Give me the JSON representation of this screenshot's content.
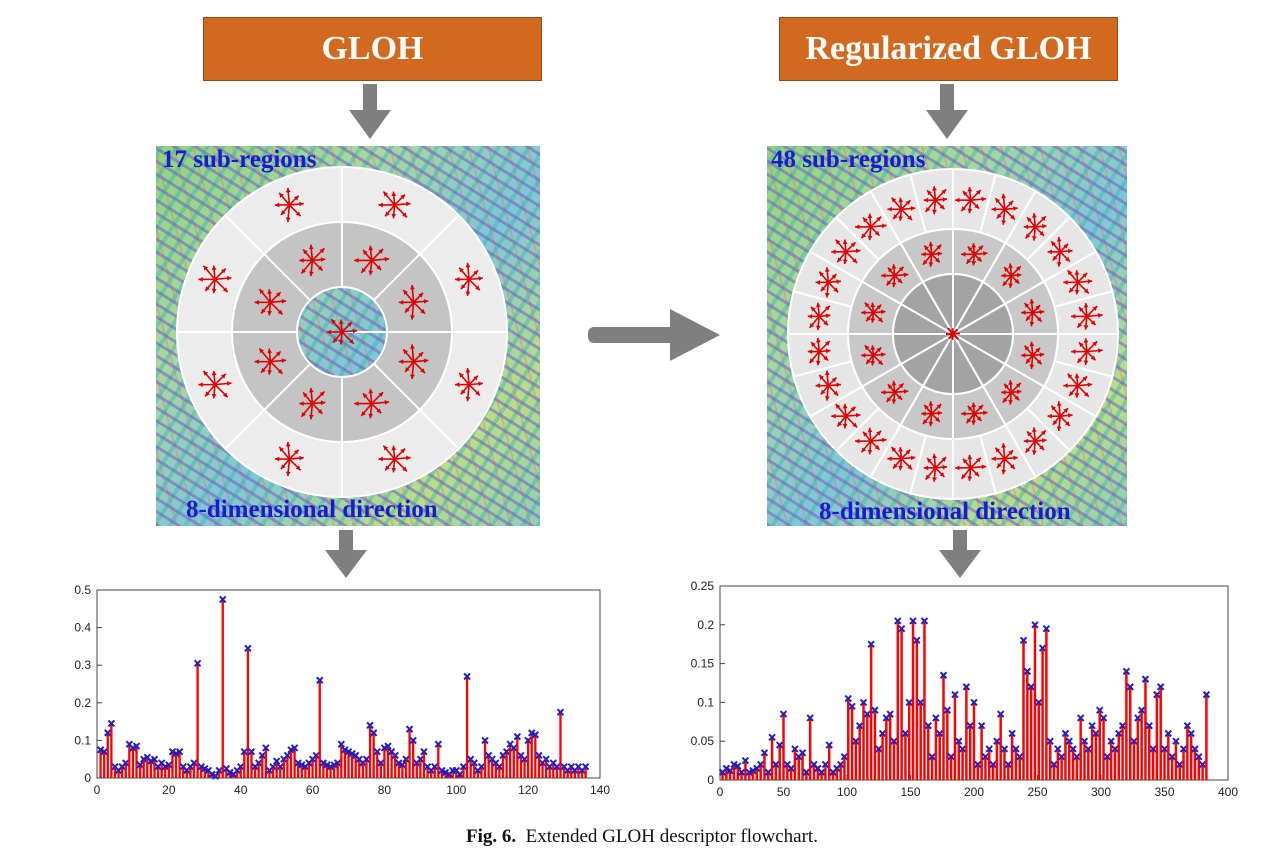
{
  "header_left": "GLOH",
  "header_right": "Regularized GLOH",
  "left_panel": {
    "subregions_label": "17 sub-regions",
    "direction_label": "8-dimensional direction"
  },
  "right_panel": {
    "subregions_label": "48 sub-regions",
    "direction_label": "8-dimensional direction"
  },
  "caption": {
    "fig": "Fig. 6.",
    "text": "Extended GLOH descriptor flowchart."
  },
  "colors": {
    "header": "#d2691e",
    "arrow": "#7f7f7f",
    "bar": "#ff0000",
    "marker": "#2020c0",
    "label": "#1a1ad0"
  },
  "chart_data": [
    {
      "type": "bar",
      "xlim": [
        0,
        140
      ],
      "ylim": [
        0,
        0.5
      ],
      "xticks": [
        0,
        20,
        40,
        60,
        80,
        100,
        120,
        140
      ],
      "yticks": [
        0,
        0.1,
        0.2,
        0.3,
        0.4,
        0.5
      ],
      "x": [
        1,
        2,
        3,
        4,
        5,
        6,
        7,
        8,
        9,
        10,
        11,
        12,
        13,
        14,
        15,
        16,
        17,
        18,
        19,
        20,
        21,
        22,
        23,
        24,
        25,
        26,
        27,
        28,
        29,
        30,
        31,
        32,
        33,
        34,
        35,
        36,
        37,
        38,
        39,
        40,
        41,
        42,
        43,
        44,
        45,
        46,
        47,
        48,
        49,
        50,
        51,
        52,
        53,
        54,
        55,
        56,
        57,
        58,
        59,
        60,
        61,
        62,
        63,
        64,
        65,
        66,
        67,
        68,
        69,
        70,
        71,
        72,
        73,
        74,
        75,
        76,
        77,
        78,
        79,
        80,
        81,
        82,
        83,
        84,
        85,
        86,
        87,
        88,
        89,
        90,
        91,
        92,
        93,
        94,
        95,
        96,
        97,
        98,
        99,
        100,
        101,
        102,
        103,
        104,
        105,
        106,
        107,
        108,
        109,
        110,
        111,
        112,
        113,
        114,
        115,
        116,
        117,
        118,
        119,
        120,
        121,
        122,
        123,
        124,
        125,
        126,
        127,
        128,
        129,
        130,
        131,
        132,
        133,
        134,
        135,
        136
      ],
      "values": [
        0.075,
        0.07,
        0.12,
        0.145,
        0.03,
        0.02,
        0.03,
        0.04,
        0.09,
        0.08,
        0.085,
        0.035,
        0.05,
        0.055,
        0.045,
        0.05,
        0.03,
        0.04,
        0.03,
        0.035,
        0.07,
        0.065,
        0.07,
        0.03,
        0.02,
        0.03,
        0.04,
        0.305,
        0.03,
        0.025,
        0.02,
        0.01,
        0.005,
        0.02,
        0.475,
        0.025,
        0.015,
        0.01,
        0.02,
        0.03,
        0.07,
        0.345,
        0.07,
        0.03,
        0.04,
        0.06,
        0.08,
        0.02,
        0.03,
        0.045,
        0.03,
        0.05,
        0.06,
        0.075,
        0.08,
        0.04,
        0.035,
        0.03,
        0.04,
        0.05,
        0.06,
        0.26,
        0.04,
        0.035,
        0.03,
        0.035,
        0.04,
        0.09,
        0.075,
        0.07,
        0.065,
        0.06,
        0.05,
        0.04,
        0.05,
        0.14,
        0.12,
        0.07,
        0.04,
        0.08,
        0.085,
        0.07,
        0.06,
        0.04,
        0.035,
        0.05,
        0.13,
        0.1,
        0.04,
        0.05,
        0.07,
        0.03,
        0.02,
        0.03,
        0.09,
        0.02,
        0.015,
        0.01,
        0.02,
        0.02,
        0.01,
        0.03,
        0.27,
        0.05,
        0.04,
        0.02,
        0.03,
        0.1,
        0.06,
        0.05,
        0.04,
        0.03,
        0.06,
        0.07,
        0.09,
        0.08,
        0.11,
        0.06,
        0.05,
        0.1,
        0.12,
        0.115,
        0.06,
        0.04,
        0.05,
        0.03,
        0.04,
        0.03,
        0.175,
        0.03,
        0.02,
        0.03,
        0.02,
        0.03,
        0.02,
        0.03
      ]
    },
    {
      "type": "bar",
      "xlim": [
        0,
        400
      ],
      "ylim": [
        0,
        0.25
      ],
      "xticks": [
        0,
        50,
        100,
        150,
        200,
        250,
        300,
        350,
        400
      ],
      "yticks": [
        0,
        0.05,
        0.1,
        0.15,
        0.2,
        0.25
      ],
      "x": [
        2,
        5,
        8,
        11,
        14,
        17,
        20,
        23,
        26,
        29,
        32,
        35,
        38,
        41,
        44,
        47,
        50,
        53,
        56,
        59,
        62,
        65,
        68,
        71,
        74,
        77,
        80,
        83,
        86,
        89,
        92,
        95,
        98,
        101,
        104,
        107,
        110,
        113,
        116,
        119,
        122,
        125,
        128,
        131,
        134,
        137,
        140,
        143,
        146,
        149,
        152,
        155,
        158,
        161,
        164,
        167,
        170,
        173,
        176,
        179,
        182,
        185,
        188,
        191,
        194,
        197,
        200,
        203,
        206,
        209,
        212,
        215,
        218,
        221,
        224,
        227,
        230,
        233,
        236,
        239,
        242,
        245,
        248,
        251,
        254,
        257,
        260,
        263,
        266,
        269,
        272,
        275,
        278,
        281,
        284,
        287,
        290,
        293,
        296,
        299,
        302,
        305,
        308,
        311,
        314,
        317,
        320,
        323,
        326,
        329,
        332,
        335,
        338,
        341,
        344,
        347,
        350,
        353,
        356,
        359,
        362,
        365,
        368,
        371,
        374,
        377,
        380,
        383
      ],
      "values": [
        0.01,
        0.015,
        0.012,
        0.02,
        0.018,
        0.01,
        0.025,
        0.01,
        0.012,
        0.015,
        0.02,
        0.035,
        0.01,
        0.055,
        0.02,
        0.045,
        0.085,
        0.02,
        0.015,
        0.04,
        0.03,
        0.035,
        0.01,
        0.08,
        0.02,
        0.015,
        0.01,
        0.02,
        0.045,
        0.01,
        0.015,
        0.02,
        0.03,
        0.105,
        0.095,
        0.05,
        0.07,
        0.1,
        0.085,
        0.175,
        0.09,
        0.04,
        0.06,
        0.08,
        0.085,
        0.05,
        0.205,
        0.195,
        0.06,
        0.1,
        0.205,
        0.18,
        0.1,
        0.205,
        0.07,
        0.03,
        0.08,
        0.06,
        0.135,
        0.09,
        0.03,
        0.11,
        0.05,
        0.04,
        0.12,
        0.07,
        0.1,
        0.02,
        0.07,
        0.03,
        0.04,
        0.02,
        0.05,
        0.085,
        0.04,
        0.02,
        0.06,
        0.04,
        0.03,
        0.18,
        0.14,
        0.12,
        0.2,
        0.1,
        0.17,
        0.195,
        0.05,
        0.02,
        0.04,
        0.03,
        0.06,
        0.05,
        0.04,
        0.03,
        0.08,
        0.05,
        0.04,
        0.07,
        0.06,
        0.09,
        0.08,
        0.03,
        0.05,
        0.04,
        0.06,
        0.07,
        0.14,
        0.12,
        0.05,
        0.08,
        0.09,
        0.13,
        0.07,
        0.04,
        0.11,
        0.12,
        0.04,
        0.06,
        0.03,
        0.05,
        0.02,
        0.04,
        0.07,
        0.06,
        0.04,
        0.03,
        0.02,
        0.11
      ]
    }
  ]
}
